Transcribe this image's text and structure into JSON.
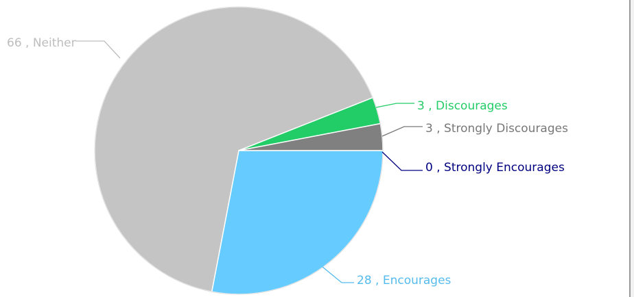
{
  "chart_data": {
    "type": "pie",
    "slices": [
      {
        "label": "Strongly Encourages",
        "value": 0,
        "display": "0 , Strongly Encourages",
        "color": "#000080",
        "label_color": "#000080"
      },
      {
        "label": "Encourages",
        "value": 28,
        "display": "28 , Encourages",
        "color": "#66ccff",
        "label_color": "#55bbee"
      },
      {
        "label": "Neither",
        "value": 66,
        "display": "66 , Neither",
        "color": "#c4c4c4",
        "label_color": "#bdbdbd"
      },
      {
        "label": "Discourages",
        "value": 3,
        "display": "3 , Discourages",
        "color": "#22cc66",
        "label_color": "#22cc66"
      },
      {
        "label": "Strongly Discourages",
        "value": 3,
        "display": "3 , Strongly Discourages",
        "color": "#808080",
        "label_color": "#777777"
      }
    ],
    "title": "",
    "legend": "none",
    "labels": "outside-with-leader-lines"
  }
}
